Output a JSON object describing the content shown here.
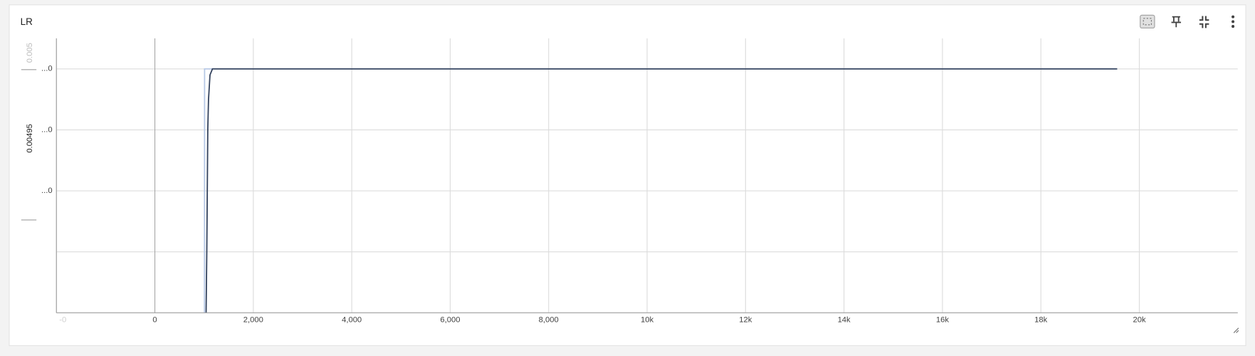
{
  "chart_data": {
    "type": "line",
    "title": "LR",
    "annotations": [
      "0.005",
      "0.00495"
    ],
    "xlim": [
      -2000,
      22000
    ],
    "xticks": [
      {
        "value": -2000,
        "label": "-0"
      },
      0,
      {
        "value": 2000,
        "label": "2,000"
      },
      {
        "value": 4000,
        "label": "4,000"
      },
      {
        "value": 6000,
        "label": "6,000"
      },
      {
        "value": 8000,
        "label": "8,000"
      },
      {
        "value": 10000,
        "label": "10k"
      },
      {
        "value": 12000,
        "label": "12k"
      },
      {
        "value": 14000,
        "label": "14k"
      },
      {
        "value": 16000,
        "label": "16k"
      },
      {
        "value": 18000,
        "label": "18k"
      },
      {
        "value": 20000,
        "label": "20k"
      }
    ],
    "ylim": [
      0.00496,
      0.005005
    ],
    "yticks": [
      {
        "value": 0.005,
        "label": "...0"
      },
      {
        "value": 0.00499,
        "label": "...0"
      },
      {
        "value": 0.00498,
        "label": "...0"
      },
      {
        "value": 0.00497,
        "label": ""
      }
    ],
    "grid": true,
    "series": [
      {
        "color": "#b6c8e6",
        "x": [
          1008,
          1010,
          19550
        ],
        "values": [
          0.00496,
          0.005,
          0.005
        ]
      },
      {
        "color": "#34435e",
        "x": [
          1041,
          1055,
          1065,
          1075,
          1090,
          1120,
          1170,
          19550
        ],
        "values": [
          0.00496,
          0.00497,
          0.00498,
          0.00499,
          0.004995,
          0.004999,
          0.005,
          0.005
        ]
      }
    ]
  }
}
